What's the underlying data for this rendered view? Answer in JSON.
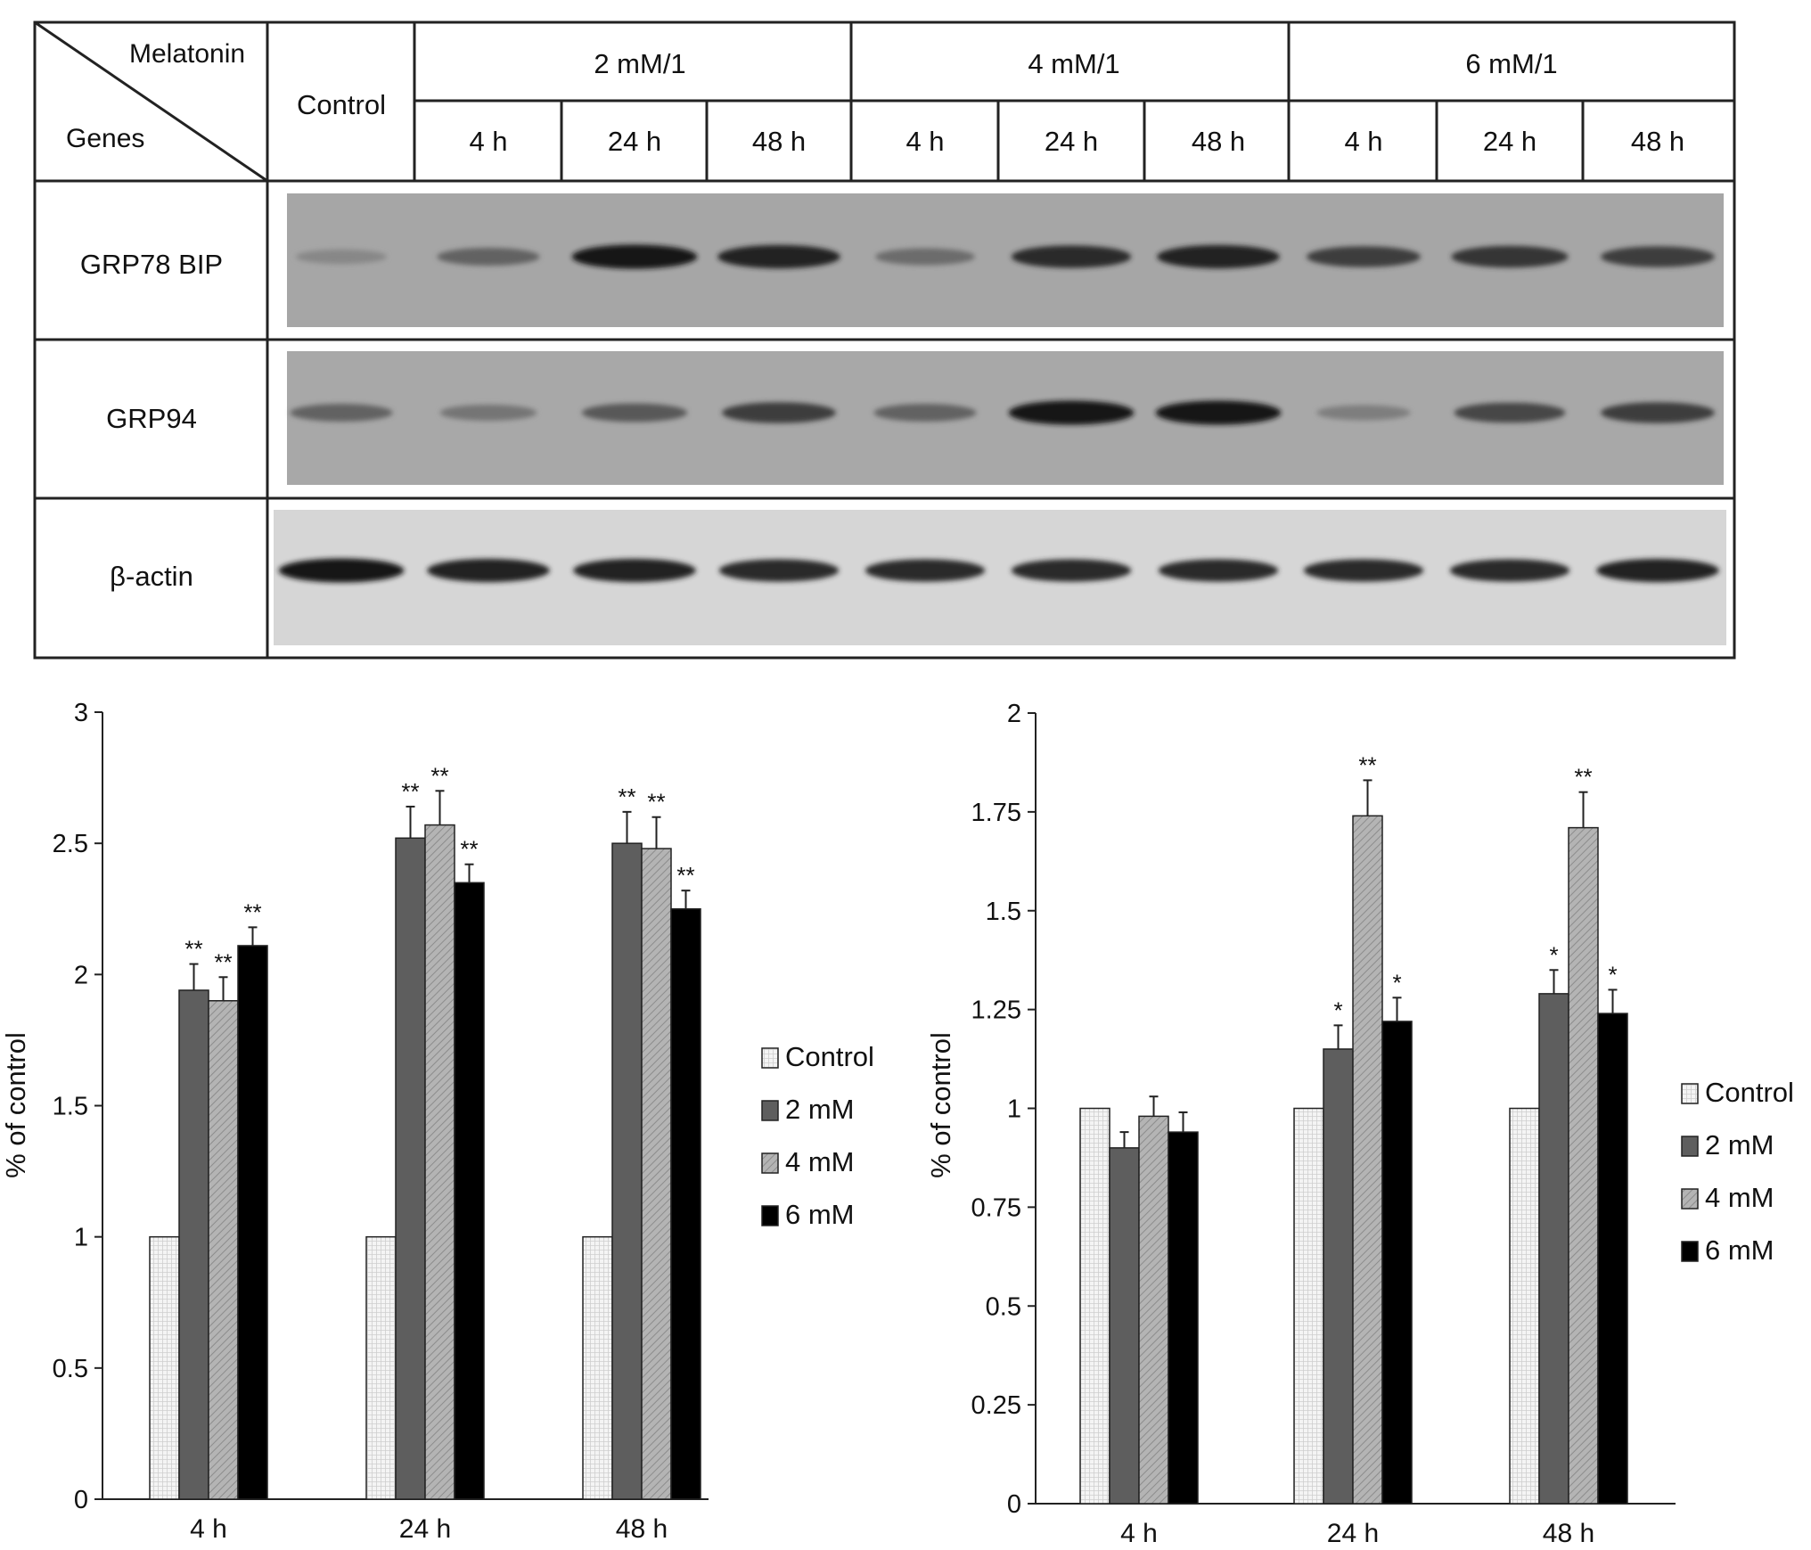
{
  "blot": {
    "corner_top": "Melatonin",
    "corner_bottom": "Genes",
    "control_label": "Control",
    "groups": [
      {
        "label": "2 mM/1",
        "times": [
          "4 h",
          "24 h",
          "48 h"
        ]
      },
      {
        "label": "4 mM/1",
        "times": [
          "4 h",
          "24 h",
          "48 h"
        ]
      },
      {
        "label": "6 mM/1",
        "times": [
          "4 h",
          "24 h",
          "48 h"
        ]
      }
    ],
    "rows": [
      {
        "gene": "GRP78 BIP",
        "band_intensity": [
          0.35,
          0.55,
          0.95,
          0.9,
          0.5,
          0.85,
          0.9,
          0.75,
          0.8,
          0.75
        ]
      },
      {
        "gene": "GRP94",
        "band_intensity": [
          0.55,
          0.45,
          0.6,
          0.75,
          0.55,
          0.95,
          0.95,
          0.4,
          0.7,
          0.75
        ]
      },
      {
        "gene": "β-actin",
        "band_intensity": [
          0.95,
          0.9,
          0.9,
          0.85,
          0.85,
          0.85,
          0.85,
          0.85,
          0.85,
          0.9
        ]
      }
    ]
  },
  "chart_data": [
    {
      "type": "bar",
      "ylabel": "% of control",
      "xlabel": "",
      "ylim": [
        0,
        3
      ],
      "yticks": [
        "0",
        "0.5",
        "1",
        "1.5",
        "2",
        "2.5",
        "3"
      ],
      "ytick_values": [
        0,
        0.5,
        1,
        1.5,
        2,
        2.5,
        3
      ],
      "categories": [
        "4 h",
        "24 h",
        "48 h"
      ],
      "series": [
        {
          "name": "Control",
          "values": [
            1.0,
            1.0,
            1.0
          ],
          "errors": [
            0,
            0,
            0
          ],
          "sig": [
            "",
            "",
            ""
          ],
          "fill": "#f2f2f2"
        },
        {
          "name": "2 mM",
          "values": [
            1.94,
            2.52,
            2.5
          ],
          "errors": [
            0.1,
            0.12,
            0.12
          ],
          "sig": [
            "**",
            "**",
            "**"
          ],
          "fill": "#5a5a5a"
        },
        {
          "name": "4 mM",
          "values": [
            1.9,
            2.57,
            2.48
          ],
          "errors": [
            0.09,
            0.13,
            0.12
          ],
          "sig": [
            "**",
            "**",
            "**"
          ],
          "fill": "#a9a9a9"
        },
        {
          "name": "6 mM",
          "values": [
            2.11,
            2.35,
            2.25
          ],
          "errors": [
            0.07,
            0.07,
            0.07
          ],
          "sig": [
            "**",
            "**",
            "**"
          ],
          "fill": "#000000"
        }
      ],
      "legend_position": "right"
    },
    {
      "type": "bar",
      "ylabel": "% of control",
      "xlabel": "",
      "ylim": [
        0,
        2
      ],
      "yticks": [
        "0",
        "0.25",
        "0.5",
        "0.75",
        "1",
        "1.25",
        "1.5",
        "1.75",
        "2"
      ],
      "ytick_values": [
        0,
        0.25,
        0.5,
        0.75,
        1,
        1.25,
        1.5,
        1.75,
        2
      ],
      "categories": [
        "4 h",
        "24 h",
        "48 h"
      ],
      "series": [
        {
          "name": "Control",
          "values": [
            1.0,
            1.0,
            1.0
          ],
          "errors": [
            0,
            0,
            0
          ],
          "sig": [
            "",
            "",
            ""
          ],
          "fill": "#f2f2f2"
        },
        {
          "name": "2 mM",
          "values": [
            0.9,
            1.15,
            1.29
          ],
          "errors": [
            0.04,
            0.06,
            0.06
          ],
          "sig": [
            "",
            "*",
            "*"
          ],
          "fill": "#5a5a5a"
        },
        {
          "name": "4 mM",
          "values": [
            0.98,
            1.74,
            1.71
          ],
          "errors": [
            0.05,
            0.09,
            0.09
          ],
          "sig": [
            "",
            "**",
            "**"
          ],
          "fill": "#a9a9a9"
        },
        {
          "name": "6 mM",
          "values": [
            0.94,
            1.22,
            1.24
          ],
          "errors": [
            0.05,
            0.06,
            0.06
          ],
          "sig": [
            "",
            "*",
            "*"
          ],
          "fill": "#000000"
        }
      ],
      "legend_position": "right"
    }
  ]
}
